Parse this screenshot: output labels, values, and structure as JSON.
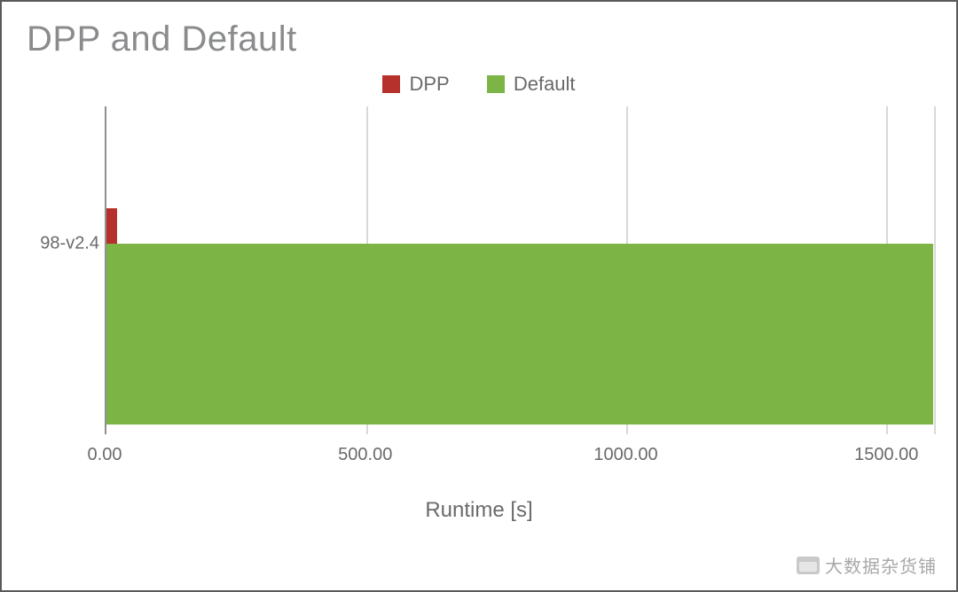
{
  "chart": {
    "type": "bar-horizontal-grouped",
    "title": "DPP and Default",
    "title_color": "#8a8b8d",
    "title_fontsize": 40,
    "background_color": "#ffffff",
    "border_color": "#5a5a5a",
    "axis_color": "#909090",
    "grid_color": "#d9d9d9",
    "label_color": "#6a6a6a",
    "label_fontsize": 22,
    "xlabel": "Runtime [s]",
    "xlabel_fontsize": 24,
    "xlim": [
      0,
      1600
    ],
    "x_ticks": [
      0,
      500,
      1000,
      1500
    ],
    "x_tick_labels": [
      "0.00",
      "500.00",
      "1000.00",
      "1500.00"
    ],
    "categories": [
      "98-v2.4"
    ],
    "series": [
      {
        "name": "DPP",
        "color": "#b6312b",
        "values": [
          20
        ]
      },
      {
        "name": "Default",
        "color": "#7cb445",
        "values": [
          1590
        ]
      }
    ],
    "bar_height_fraction_dpp": 0.11,
    "bar_height_fraction_default": 0.55,
    "legend_position": "top-center"
  },
  "watermark": {
    "text": "大数据杂货铺",
    "color": "#a8a8a8"
  }
}
